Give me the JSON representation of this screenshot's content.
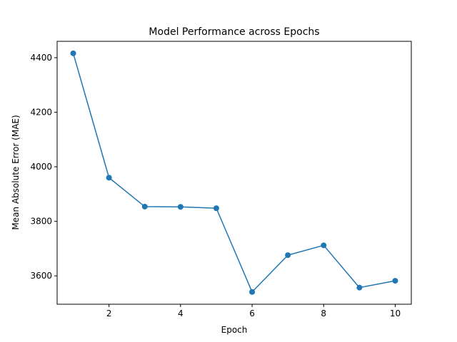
{
  "chart_data": {
    "type": "line",
    "title": "Model Performance across Epochs",
    "xlabel": "Epoch",
    "ylabel": "Mean Absolute Error (MAE)",
    "xlim": [
      0.55,
      10.45
    ],
    "ylim": [
      3496,
      4460
    ],
    "xticks": [
      2,
      4,
      6,
      8,
      10
    ],
    "yticks": [
      3600,
      3800,
      4000,
      4200,
      4400
    ],
    "grid": false,
    "series": [
      {
        "color": "#1f77b4",
        "marker": "circle",
        "x": [
          1,
          2,
          3,
          4,
          5,
          6,
          7,
          8,
          9,
          10
        ],
        "y": [
          4416,
          3960,
          3854,
          3853,
          3848,
          3541,
          3676,
          3712,
          3557,
          3582
        ]
      }
    ]
  }
}
